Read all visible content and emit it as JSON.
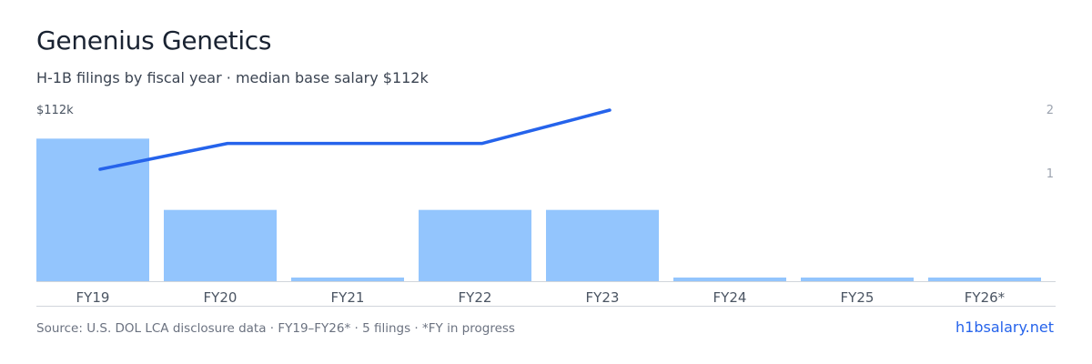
{
  "title": "Genenius Genetics",
  "subtitle": "H-1B filings by fiscal year · median base salary $112k",
  "footer": {
    "source": "Source: U.S. DOL LCA disclosure data · FY19–FY26* · 5 filings · *FY in progress",
    "brand": "h1bsalary.net"
  },
  "colors": {
    "bar": "#93c5fd",
    "line": "#2563eb",
    "axis": "#d1d5db",
    "tick_text": "#4b5563",
    "right_tick_text": "#9ca3af"
  },
  "chart_data": {
    "type": "bar",
    "categories": [
      "FY19",
      "FY20",
      "FY21",
      "FY22",
      "FY23",
      "FY24",
      "FY25",
      "FY26*"
    ],
    "series": [
      {
        "type": "bar",
        "axis": "right",
        "values": [
          2,
          1,
          0,
          1,
          1,
          0,
          0,
          0
        ]
      },
      {
        "type": "line",
        "axis": "left",
        "values": [
          96,
          103,
          103,
          103,
          112,
          null,
          null,
          null
        ]
      }
    ],
    "left_axis": {
      "label": "$112k",
      "max": 112
    },
    "right_axis": {
      "ticks": [
        "2",
        "1"
      ],
      "max": 2.4
    },
    "grid": false
  }
}
